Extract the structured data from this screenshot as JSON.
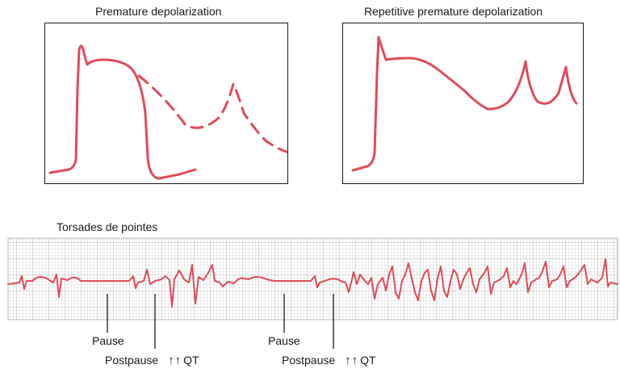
{
  "panels": [
    {
      "title": "Premature depolarization"
    },
    {
      "title": "Repetitive premature depolarization"
    }
  ],
  "strip": {
    "title": "Torsades de pointes",
    "annotations": [
      {
        "pause": "Pause",
        "postpause": "Postpause",
        "arrows": "↑↑",
        "qt": "QT"
      },
      {
        "pause": "Pause",
        "postpause": "Postpause",
        "arrows": "↑↑",
        "qt": "QT"
      }
    ]
  },
  "colors": {
    "trace": "#e04b57",
    "grid": "#b9b9b9",
    "frame": "#1a1a1a"
  }
}
